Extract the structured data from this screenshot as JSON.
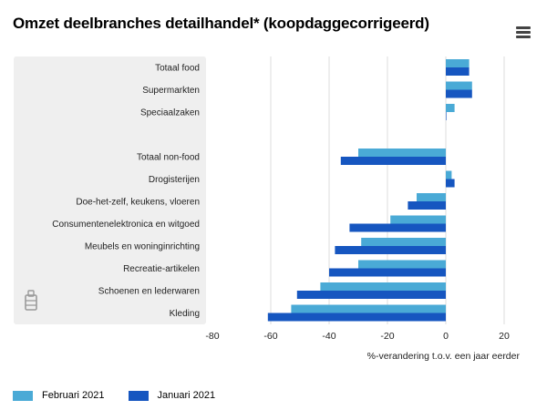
{
  "title": "Omzet deelbranches detailhandel* (koopdaggecorrigeerd)",
  "menu_icon": "hamburger-menu-icon",
  "colors": {
    "februari": "#4aaad6",
    "januari": "#1656c0",
    "category_band": "#efefef",
    "gridline": "#dddddd",
    "axis_text": "#222222"
  },
  "chart_data": {
    "type": "bar",
    "orientation": "horizontal",
    "categories": [
      "Totaal food",
      "Supermarkten",
      "Speciaalzaken",
      "",
      "Totaal non-food",
      "Drogisterijen",
      "Doe-het-zelf, keukens, vloeren",
      "Consumentenelektronica en witgoed",
      "Meubels en woninginrichting",
      "Recreatie-artikelen",
      "Schoenen en lederwaren",
      "Kleding"
    ],
    "series": [
      {
        "name": "Februari 2021",
        "values": [
          8,
          9,
          3,
          null,
          -30,
          2,
          -10,
          -19,
          -29,
          -30,
          -43,
          -53
        ]
      },
      {
        "name": "Januari 2021",
        "values": [
          8,
          9,
          0,
          null,
          -36,
          3,
          -13,
          -33,
          -38,
          -40,
          -51,
          -61
        ]
      }
    ],
    "xlabel": "%-verandering t.o.v. een jaar eerder",
    "xlim": [
      -80,
      20
    ],
    "xticks": [
      -80,
      -60,
      -40,
      -20,
      0,
      20
    ],
    "grid": true,
    "legend_position": "bottom-left"
  }
}
